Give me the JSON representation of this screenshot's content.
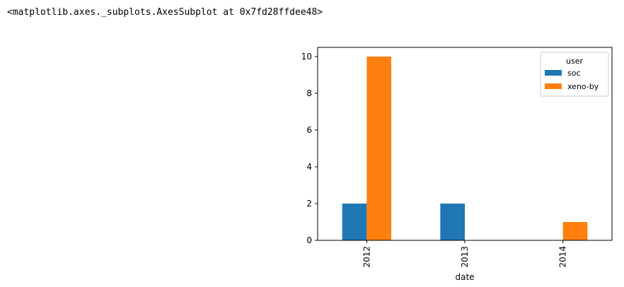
{
  "output_repr": "<matplotlib.axes._subplots.AxesSubplot at 0x7fd28ffdee48>",
  "chart_data": {
    "type": "bar",
    "categories": [
      "2012",
      "2013",
      "2014"
    ],
    "series": [
      {
        "name": "soc",
        "values": [
          2,
          2,
          0
        ],
        "color": "#1f77b4"
      },
      {
        "name": "xeno-by",
        "values": [
          10,
          0,
          1
        ],
        "color": "#ff7f0e"
      }
    ],
    "xlabel": "date",
    "ylabel": "",
    "ylim": [
      0,
      10.5
    ],
    "yticks": [
      0,
      2,
      4,
      6,
      8,
      10
    ],
    "legend_title": "user",
    "legend_position": "top-right",
    "xtick_rotation": "vertical",
    "grid": false
  }
}
